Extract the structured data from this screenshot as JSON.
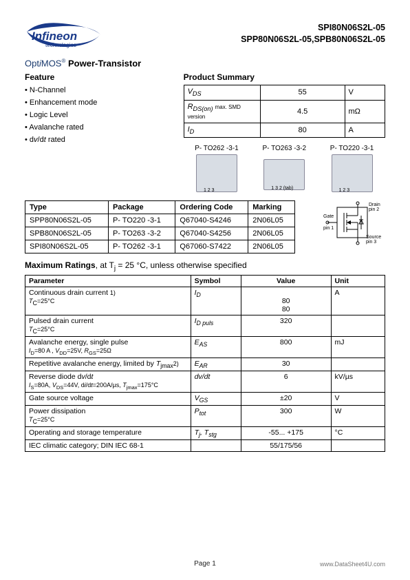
{
  "header": {
    "logo_top": "Infineon",
    "logo_sub": "technologies",
    "parts_line1": "SPI80N06S2L-05",
    "parts_line2": "SPP80N06S2L-05,SPB80N06S2L-05"
  },
  "title": {
    "opti": "Opt",
    "i": "i",
    "mos": "MOS",
    "reg": "®",
    "suffix": "Power-Transistor"
  },
  "features_head": "Feature",
  "features": [
    "N-Channel",
    "Enhancement mode",
    "Logic Level",
    "Avalanche rated",
    "dv/dt rated"
  ],
  "summary_head": "Product Summary",
  "summary": [
    {
      "sym_html": "V<sub>DS</sub>",
      "val": "55",
      "unit": "V"
    },
    {
      "sym_html": "R<sub>DS(on)</sub> <span class='small-note'>max. SMD version</span>",
      "val": "4.5",
      "unit": "mΩ"
    },
    {
      "sym_html": "I<sub>D</sub>",
      "val": "80",
      "unit": "A"
    }
  ],
  "packages": [
    {
      "label": "P- TO262 -3-1",
      "pins": "1 2 3"
    },
    {
      "label": "P- TO263 -3-2",
      "pins": "1   3   2 (tab)"
    },
    {
      "label": "P- TO220 -3-1",
      "pins": "1 2 3"
    }
  ],
  "symbol_labels": {
    "drain": "Drain pin 2",
    "gate": "Gate pin 1",
    "source": "Source pin 3"
  },
  "types_head": [
    "Type",
    "Package",
    "Ordering Code",
    "Marking"
  ],
  "types": [
    [
      "SPP80N06S2L-05",
      "P- TO220 -3-1",
      "Q67040-S4246",
      "2N06L05"
    ],
    [
      "SPB80N06S2L-05",
      "P- TO263 -3-2",
      "Q67040-S4256",
      "2N06L05"
    ],
    [
      "SPI80N06S2L-05",
      "P- TO262 -3-1",
      "Q67060-S7422",
      "2N06L05"
    ]
  ],
  "ratings_title_pre": "Maximum Ratings",
  "ratings_title_post": ", at  T<sub>j</sub> = 25 °C, unless otherwise specified",
  "ratings_head": [
    "Parameter",
    "Symbol",
    "Value",
    "Unit"
  ],
  "ratings": [
    {
      "param": "Continuous drain current <span class='cond'>1)</span><br><span class='cond italic'>T</span><span class='cond sub'>C</span><span class='cond'>=25°C</span>",
      "sym": "I<sub>D</sub>",
      "val": "<br>80<br>80",
      "unit": "A"
    },
    {
      "param": "Pulsed drain current<br><span class='cond italic'>T</span><span class='cond sub'>C</span><span class='cond'>=25°C</span>",
      "sym": "I<sub>D puls</sub>",
      "val": "320",
      "unit": ""
    },
    {
      "param": "Avalanche energy, single pulse<br><span class='cond'><span class='italic'>I</span><sub>D</sub>=80 A , <span class='italic'>V</span><sub>DD</sub>=25V, <span class='italic'>R</span><sub>GS</sub>=25Ω</span>",
      "sym": "E<sub>AS</sub>",
      "val": "800",
      "unit": "mJ"
    },
    {
      "param": "Repetitive avalanche energy, limited by  <span class='italic'>T</span><sub>jmax</sub><span class='cond'>2)</span>",
      "sym": "E<sub>AR</sub>",
      "val": "30",
      "unit": ""
    },
    {
      "param": "Reverse diode d<span class='italic'>v</span>/d<span class='italic'>t</span><br><span class='cond'><span class='italic'>I</span><sub>S</sub>=80A, <span class='italic'>V</span><sub>DS</sub>=44V, d<span class='italic'>i</span>/d<span class='italic'>t</span>=200A/µs, <span class='italic'>T</span><sub>jmax</sub>=175°C</span>",
      "sym": "d<span class='italic'>v</span>/d<span class='italic'>t</span>",
      "val": "6",
      "unit": "kV/µs"
    },
    {
      "param": "Gate source voltage",
      "sym": "V<sub>GS</sub>",
      "val": "±20",
      "unit": "V"
    },
    {
      "param": "Power dissipation<br><span class='cond italic'>T</span><span class='cond sub'>C</span><span class='cond'>=25°C</span>",
      "sym": "P<sub>tot</sub>",
      "val": "300",
      "unit": "W"
    },
    {
      "param": "Operating and storage temperature",
      "sym": "T<sub>j</sub>, T<sub>stg</sub>",
      "val": "-55... +175",
      "unit": "°C"
    },
    {
      "param": "IEC climatic category; DIN IEC 68-1",
      "sym": "",
      "val": "55/175/56",
      "unit": ""
    }
  ],
  "footer": {
    "page": "Page 1",
    "right": "www.DataSheet4U.com"
  }
}
